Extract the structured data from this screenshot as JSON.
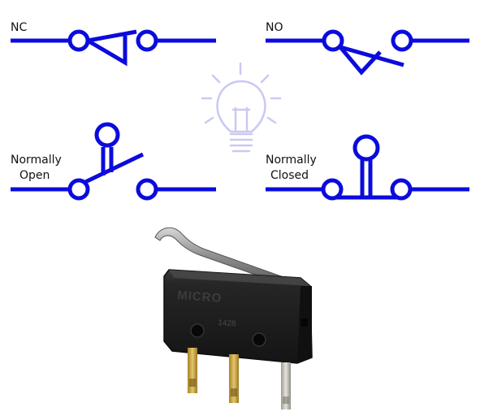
{
  "labels": {
    "nc": "NC",
    "no": "NO",
    "normally_open": [
      "Normally",
      "Open"
    ],
    "normally_closed": [
      "Normally",
      "Closed"
    ]
  },
  "switch_body": {
    "brand_text": "MICRO",
    "code_text": "1428"
  },
  "colors": {
    "symbol": "#0b0bdd",
    "bulb": "#c9c9f4",
    "body": "#1f1f1f",
    "lever": "#8f8f8f",
    "terminal_gold": "#c8a23a",
    "terminal_silver": "#c7c5bd"
  },
  "icons": [
    "light-bulb-icon"
  ]
}
